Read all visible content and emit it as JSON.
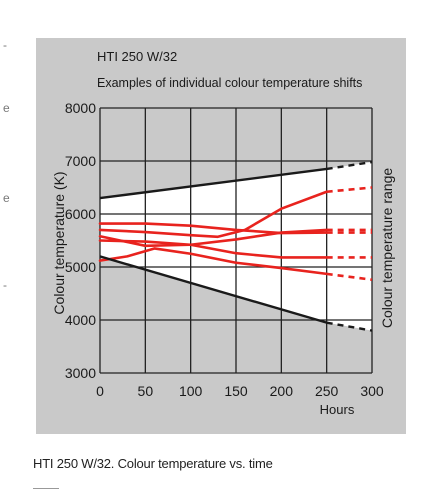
{
  "chart_data": {
    "type": "line",
    "title": "HTI 250 W/32",
    "subtitle": "Examples of individual colour  temperature shifts",
    "xlabel": "Hours",
    "ylabel": "Colour temperature (K)",
    "right_label": "Colour temperature range",
    "xlim": [
      0,
      300
    ],
    "ylim": [
      3000,
      8000
    ],
    "x_ticks": [
      "0",
      "50",
      "100",
      "150",
      "200",
      "250",
      "300"
    ],
    "y_ticks": [
      "3000",
      "4000",
      "5000",
      "6000",
      "7000",
      "8000"
    ],
    "grid": true,
    "range_band": {
      "upper": {
        "x": [
          0,
          250,
          300
        ],
        "y": [
          6300,
          6850,
          6980
        ]
      },
      "lower": {
        "x": [
          0,
          250,
          300
        ],
        "y": [
          5200,
          3950,
          3800
        ]
      },
      "dashed_after_x": 250
    },
    "series": [
      {
        "x": [
          0,
          50,
          100,
          130,
          160,
          200,
          250,
          300
        ],
        "y": [
          5700,
          5660,
          5600,
          5570,
          5700,
          6100,
          6420,
          6500
        ]
      },
      {
        "x": [
          0,
          50,
          100,
          150,
          200,
          250,
          300
        ],
        "y": [
          5820,
          5820,
          5780,
          5700,
          5640,
          5650,
          5650
        ]
      },
      {
        "x": [
          0,
          50,
          100,
          150,
          200,
          250,
          300
        ],
        "y": [
          5580,
          5400,
          5420,
          5520,
          5650,
          5700,
          5700
        ]
      },
      {
        "x": [
          0,
          50,
          100,
          150,
          200,
          250,
          300
        ],
        "y": [
          5500,
          5480,
          5420,
          5260,
          5180,
          5180,
          5180
        ]
      },
      {
        "x": [
          0,
          30,
          60,
          100,
          150,
          200,
          250,
          300
        ],
        "y": [
          5120,
          5200,
          5350,
          5250,
          5080,
          4980,
          4870,
          4760
        ]
      }
    ],
    "colors": {
      "panel": "#c9c9c9",
      "band": "#ffffff",
      "range_line": "#1a1a1a",
      "series": "#e8231e",
      "grid": "#222222"
    }
  },
  "caption": "HTI 250 W/32. Colour temperature vs. time",
  "margin_marks": [
    "-",
    "e",
    "e",
    "-"
  ]
}
